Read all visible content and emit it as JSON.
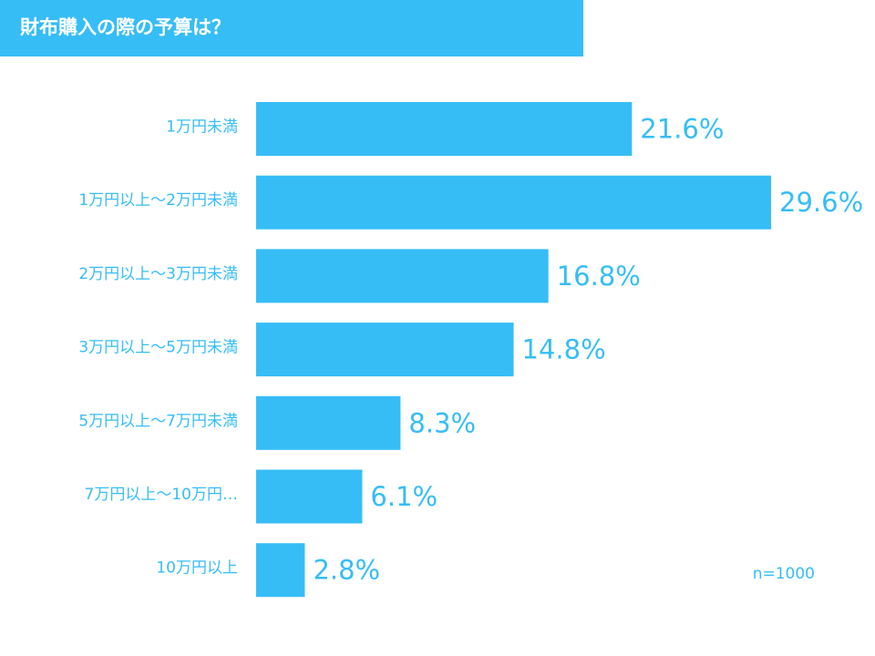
{
  "title": "財布購入の際の予算は？",
  "note": "n=1000",
  "colors": {
    "banner": "#36bdf6",
    "bar": "#36bdf6",
    "text": "#36bdf6"
  },
  "chart_data": {
    "type": "bar",
    "orientation": "horizontal",
    "categories": [
      "1万円未満",
      "1万円以上～2万円未満",
      "2万円以上～3万円未満",
      "3万円以上～5万円未満",
      "5万円以上～7万円未満",
      "7万円以上～10万円…",
      "10万円以上"
    ],
    "values": [
      21.6,
      29.6,
      16.8,
      14.8,
      8.3,
      6.1,
      2.8
    ],
    "value_labels": [
      "21.6%",
      "29.6%",
      "16.8%",
      "14.8%",
      "8.3%",
      "6.1%",
      "2.8%"
    ],
    "unit": "%",
    "xlim": [
      0,
      29.6
    ],
    "grid": false,
    "legend": "none"
  }
}
